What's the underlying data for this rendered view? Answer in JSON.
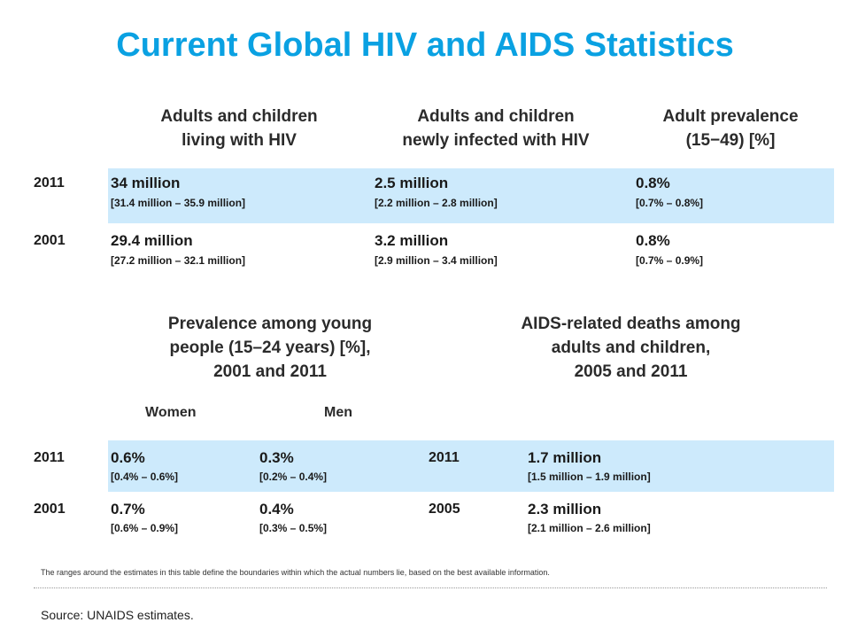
{
  "title": "Current Global HIV and AIDS Statistics",
  "colors": {
    "title": "#0aa1e2",
    "band": "#cdeafc"
  },
  "top_table": {
    "headers": [
      {
        "line1": "Adults and children",
        "line2": "living with HIV"
      },
      {
        "line1": "Adults and children",
        "line2": "newly infected with HIV"
      },
      {
        "line1": "Adult prevalence",
        "line2": "(15−49) [%]"
      }
    ],
    "rows": [
      {
        "year": "2011",
        "cells": [
          {
            "value": "34 million",
            "range": "[31.4 million – 35.9 million]"
          },
          {
            "value": "2.5 million",
            "range": "[2.2 million – 2.8 million]"
          },
          {
            "value": "0.8%",
            "range": "[0.7% – 0.8%]"
          }
        ]
      },
      {
        "year": "2001",
        "cells": [
          {
            "value": "29.4 million",
            "range": "[27.2 million – 32.1 million]"
          },
          {
            "value": "3.2 million",
            "range": "[2.9 million – 3.4 million]"
          },
          {
            "value": "0.8%",
            "range": "[0.7% – 0.9%]"
          }
        ]
      }
    ]
  },
  "prevalence_young": {
    "header": [
      "Prevalence among young",
      "people (15–24 years) [%],",
      "2001 and 2011"
    ],
    "women_label": "Women",
    "men_label": "Men",
    "rows": [
      {
        "year": "2011",
        "women": {
          "value": "0.6%",
          "range": "[0.4% – 0.6%]"
        },
        "men": {
          "value": "0.3%",
          "range": "[0.2% – 0.4%]"
        }
      },
      {
        "year": "2001",
        "women": {
          "value": "0.7%",
          "range": "[0.6% – 0.9%]"
        },
        "men": {
          "value": "0.4%",
          "range": "[0.3% – 0.5%]"
        }
      }
    ]
  },
  "aids_deaths": {
    "header": [
      "AIDS-related deaths among",
      "adults and children,",
      "2005 and 2011"
    ],
    "rows": [
      {
        "year": "2011",
        "value": "1.7 million",
        "range": "[1.5 million – 1.9 million]"
      },
      {
        "year": "2005",
        "value": "2.3 million",
        "range": "[2.1 million – 2.6 million]"
      }
    ]
  },
  "footnote": "The ranges around the estimates in this table define the boundaries within which the actual numbers lie, based on the best available information.",
  "source": "Source:  UNAIDS estimates."
}
